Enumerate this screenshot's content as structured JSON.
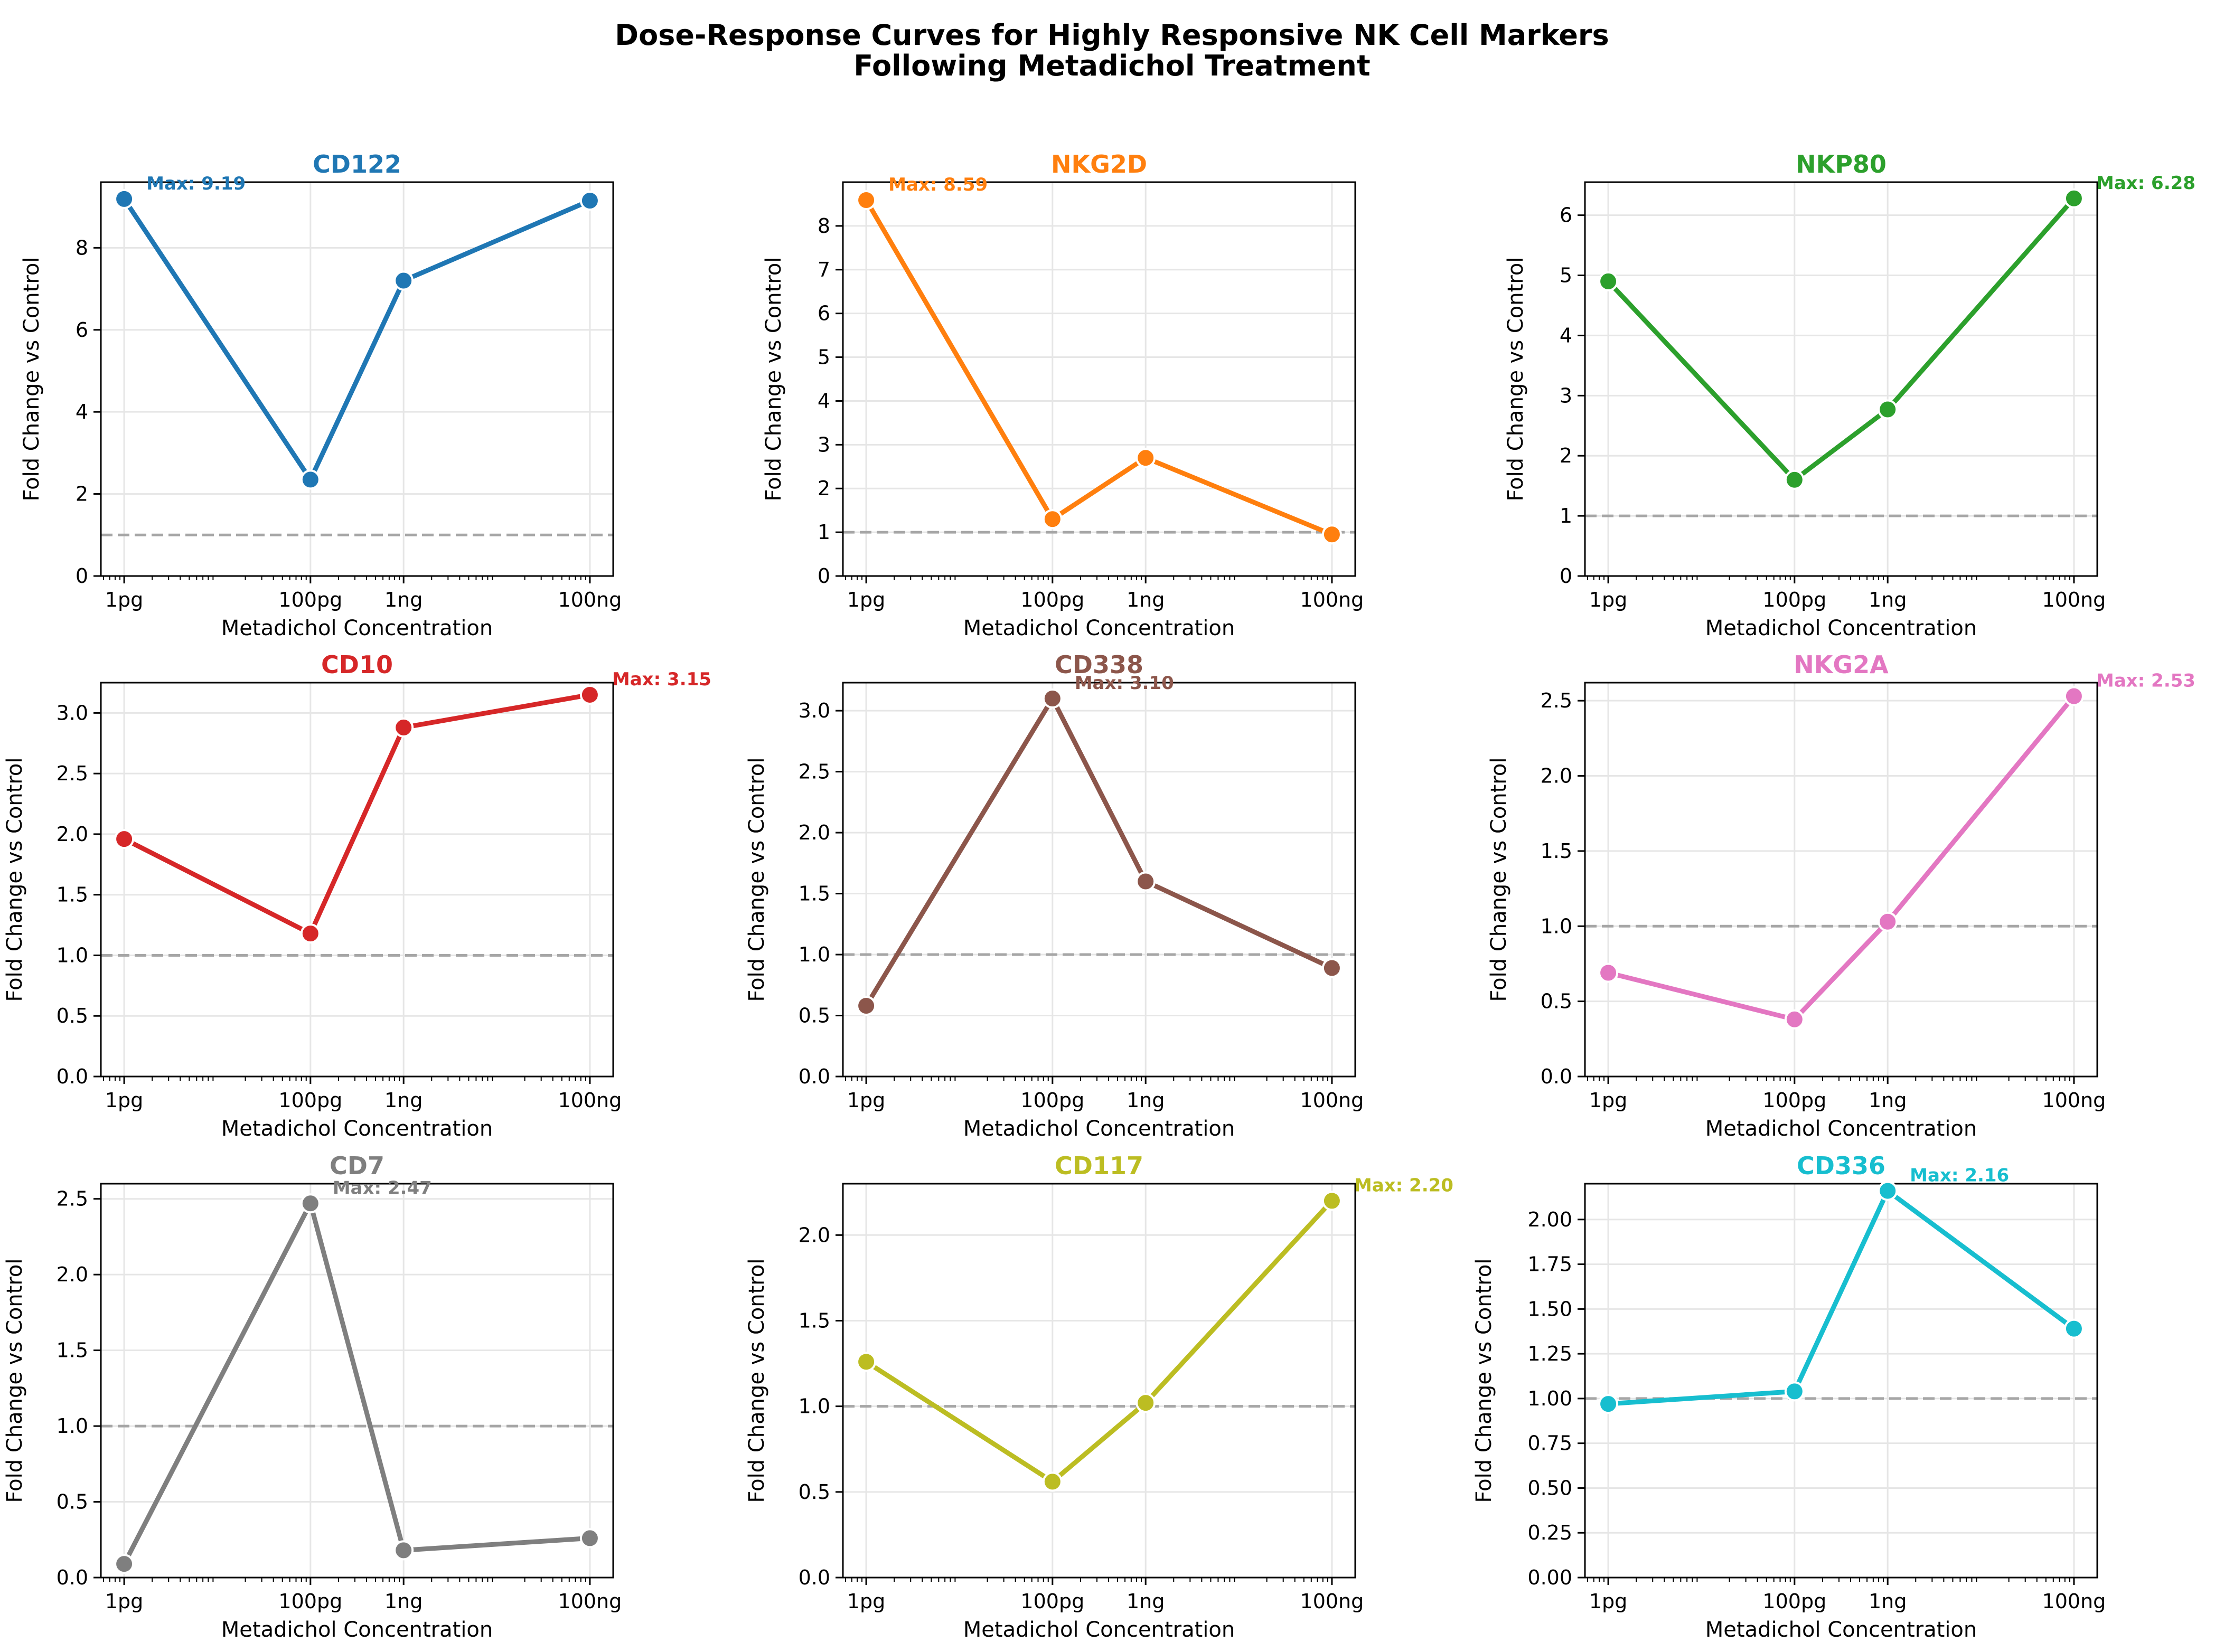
{
  "figure": {
    "title_lines": [
      "Dose-Response Curves for Highly Responsive NK Cell Markers",
      "Following Metadichol Treatment"
    ]
  },
  "chart_data": [
    {
      "type": "line",
      "title": "CD122",
      "color": "#1f77b4",
      "xlabel": "Metadichol Concentration",
      "ylabel": "Fold Change vs Control",
      "x": [
        "1pg",
        "100pg",
        "1ng",
        "100ng"
      ],
      "x_pg": [
        1,
        100,
        1000,
        100000
      ],
      "series": [
        {
          "values": [
            9.19,
            2.35,
            7.2,
            9.15
          ]
        }
      ],
      "ylim": [
        0,
        9.6
      ],
      "yticks": [
        "0",
        "2",
        "4",
        "6",
        "8"
      ],
      "ytick_values": [
        0,
        2,
        4,
        6,
        8
      ],
      "reference_line": 1.0,
      "max_label": "Max: 9.19",
      "max_index": 0,
      "grid": true
    },
    {
      "type": "line",
      "title": "NKG2D",
      "color": "#ff7f0e",
      "xlabel": "Metadichol Concentration",
      "ylabel": "Fold Change vs Control",
      "x": [
        "1pg",
        "100pg",
        "1ng",
        "100ng"
      ],
      "x_pg": [
        1,
        100,
        1000,
        100000
      ],
      "series": [
        {
          "values": [
            8.59,
            1.3,
            2.7,
            0.95
          ]
        }
      ],
      "ylim": [
        0,
        9.0
      ],
      "yticks": [
        "0",
        "1",
        "2",
        "3",
        "4",
        "5",
        "6",
        "7",
        "8"
      ],
      "ytick_values": [
        0,
        1,
        2,
        3,
        4,
        5,
        6,
        7,
        8
      ],
      "reference_line": 1.0,
      "max_label": "Max: 8.59",
      "max_index": 0,
      "grid": true
    },
    {
      "type": "line",
      "title": "NKP80",
      "color": "#2ca02c",
      "xlabel": "Metadichol Concentration",
      "ylabel": "Fold Change vs Control",
      "x": [
        "1pg",
        "100pg",
        "1ng",
        "100ng"
      ],
      "x_pg": [
        1,
        100,
        1000,
        100000
      ],
      "series": [
        {
          "values": [
            4.9,
            1.6,
            2.77,
            6.28
          ]
        }
      ],
      "ylim": [
        0,
        6.55
      ],
      "yticks": [
        "0",
        "1",
        "2",
        "3",
        "4",
        "5",
        "6"
      ],
      "ytick_values": [
        0,
        1,
        2,
        3,
        4,
        5,
        6
      ],
      "reference_line": 1.0,
      "max_label": "Max: 6.28",
      "max_index": 3,
      "grid": true
    },
    {
      "type": "line",
      "title": "CD10",
      "color": "#d62728",
      "xlabel": "Metadichol Concentration",
      "ylabel": "Fold Change vs Control",
      "x": [
        "1pg",
        "100pg",
        "1ng",
        "100ng"
      ],
      "x_pg": [
        1,
        100,
        1000,
        100000
      ],
      "series": [
        {
          "values": [
            1.96,
            1.18,
            2.88,
            3.15
          ]
        }
      ],
      "ylim": [
        0,
        3.25
      ],
      "yticks": [
        "0.0",
        "0.5",
        "1.0",
        "1.5",
        "2.0",
        "2.5",
        "3.0"
      ],
      "ytick_values": [
        0,
        0.5,
        1,
        1.5,
        2,
        2.5,
        3
      ],
      "reference_line": 1.0,
      "max_label": "Max: 3.15",
      "max_index": 3,
      "grid": true
    },
    {
      "type": "line",
      "title": "CD338",
      "color": "#8c564b",
      "xlabel": "Metadichol Concentration",
      "ylabel": "Fold Change vs Control",
      "x": [
        "1pg",
        "100pg",
        "1ng",
        "100ng"
      ],
      "x_pg": [
        1,
        100,
        1000,
        100000
      ],
      "series": [
        {
          "values": [
            0.58,
            3.1,
            1.6,
            0.89
          ]
        }
      ],
      "ylim": [
        0,
        3.23
      ],
      "yticks": [
        "0.0",
        "0.5",
        "1.0",
        "1.5",
        "2.0",
        "2.5",
        "3.0"
      ],
      "ytick_values": [
        0,
        0.5,
        1,
        1.5,
        2,
        2.5,
        3
      ],
      "reference_line": 1.0,
      "max_label": "Max: 3.10",
      "max_index": 1,
      "grid": true
    },
    {
      "type": "line",
      "title": "NKG2A",
      "color": "#e377c2",
      "xlabel": "Metadichol Concentration",
      "ylabel": "Fold Change vs Control",
      "x": [
        "1pg",
        "100pg",
        "1ng",
        "100ng"
      ],
      "x_pg": [
        1,
        100,
        1000,
        100000
      ],
      "series": [
        {
          "values": [
            0.69,
            0.38,
            1.03,
            2.53
          ]
        }
      ],
      "ylim": [
        0,
        2.62
      ],
      "yticks": [
        "0.0",
        "0.5",
        "1.0",
        "1.5",
        "2.0",
        "2.5"
      ],
      "ytick_values": [
        0,
        0.5,
        1,
        1.5,
        2,
        2.5
      ],
      "reference_line": 1.0,
      "max_label": "Max: 2.53",
      "max_index": 3,
      "grid": true
    },
    {
      "type": "line",
      "title": "CD7",
      "color": "#7f7f7f",
      "xlabel": "Metadichol Concentration",
      "ylabel": "Fold Change vs Control",
      "x": [
        "1pg",
        "100pg",
        "1ng",
        "100ng"
      ],
      "x_pg": [
        1,
        100,
        1000,
        100000
      ],
      "series": [
        {
          "values": [
            0.09,
            2.47,
            0.18,
            0.26
          ]
        }
      ],
      "ylim": [
        0,
        2.6
      ],
      "yticks": [
        "0.0",
        "0.5",
        "1.0",
        "1.5",
        "2.0",
        "2.5"
      ],
      "ytick_values": [
        0,
        0.5,
        1,
        1.5,
        2,
        2.5
      ],
      "reference_line": 1.0,
      "max_label": "Max: 2.47",
      "max_index": 1,
      "grid": true
    },
    {
      "type": "line",
      "title": "CD117",
      "color": "#bcbd22",
      "xlabel": "Metadichol Concentration",
      "ylabel": "Fold Change vs Control",
      "x": [
        "1pg",
        "100pg",
        "1ng",
        "100ng"
      ],
      "x_pg": [
        1,
        100,
        1000,
        100000
      ],
      "series": [
        {
          "values": [
            1.26,
            0.56,
            1.02,
            2.2
          ]
        }
      ],
      "ylim": [
        0,
        2.3
      ],
      "yticks": [
        "0.0",
        "0.5",
        "1.0",
        "1.5",
        "2.0"
      ],
      "ytick_values": [
        0,
        0.5,
        1,
        1.5,
        2
      ],
      "reference_line": 1.0,
      "max_label": "Max: 2.20",
      "max_index": 3,
      "grid": true
    },
    {
      "type": "line",
      "title": "CD336",
      "color": "#17becf",
      "xlabel": "Metadichol Concentration",
      "ylabel": "Fold Change vs Control",
      "x": [
        "1pg",
        "100pg",
        "1ng",
        "100ng"
      ],
      "x_pg": [
        1,
        100,
        1000,
        100000
      ],
      "series": [
        {
          "values": [
            0.97,
            1.04,
            2.16,
            1.39
          ]
        }
      ],
      "ylim": [
        0,
        2.2
      ],
      "yticks": [
        "0.00",
        "0.25",
        "0.50",
        "0.75",
        "1.00",
        "1.25",
        "1.50",
        "1.75",
        "2.00"
      ],
      "ytick_values": [
        0,
        0.25,
        0.5,
        0.75,
        1,
        1.25,
        1.5,
        1.75,
        2
      ],
      "reference_line": 1.0,
      "max_label": "Max: 2.16",
      "max_index": 2,
      "grid": true
    }
  ]
}
